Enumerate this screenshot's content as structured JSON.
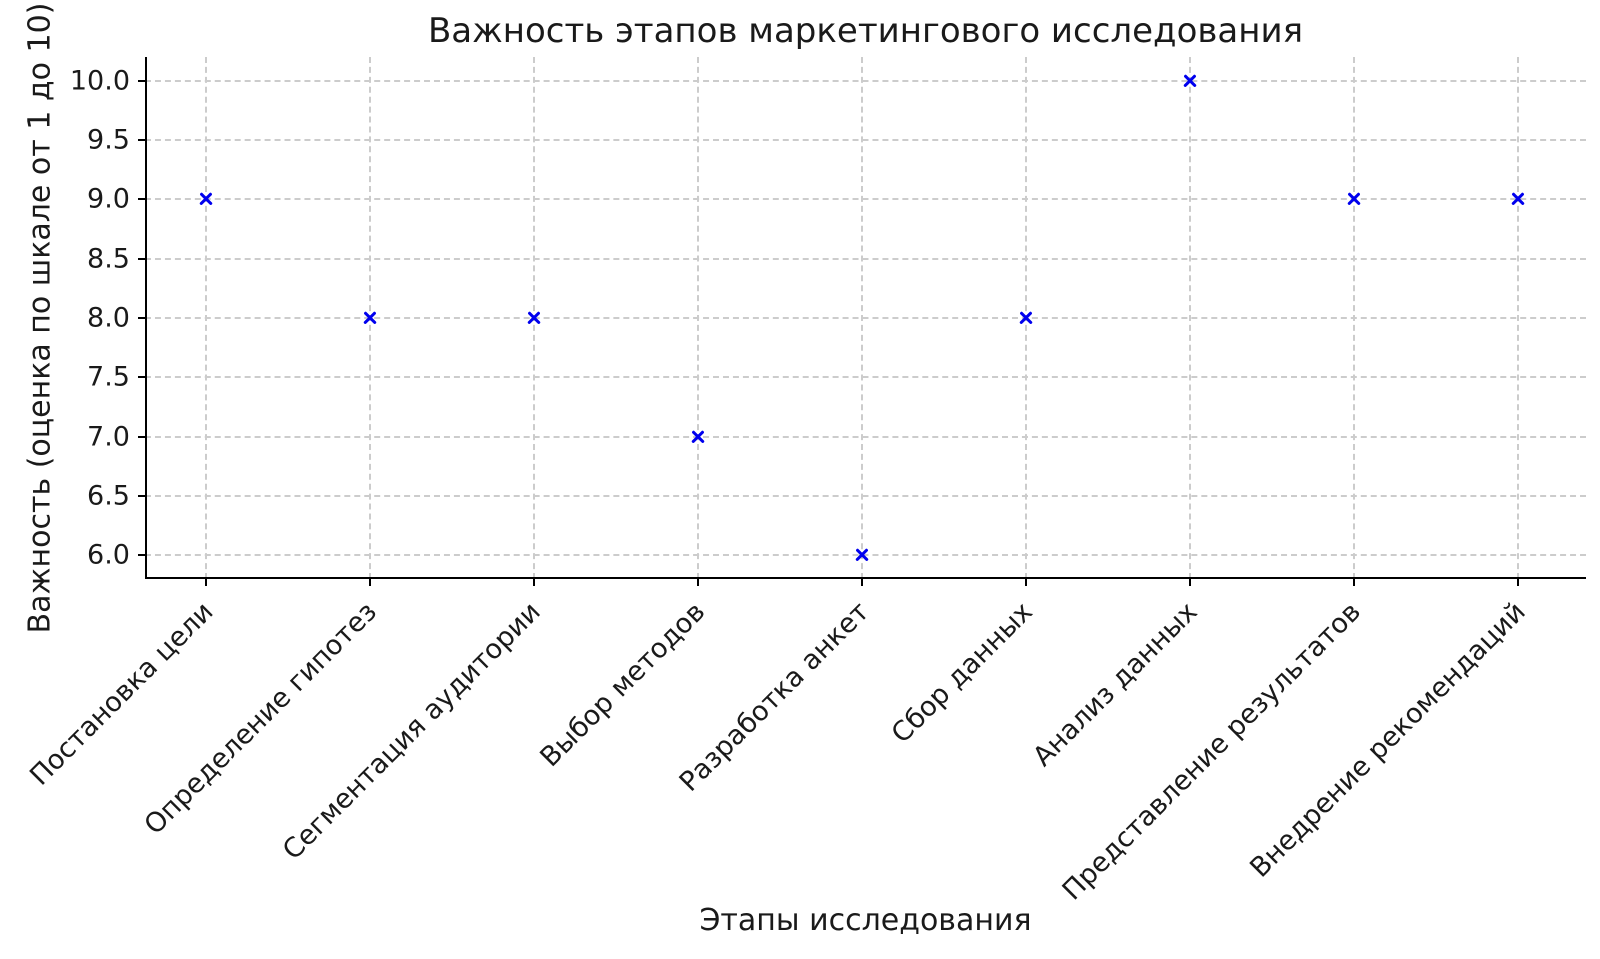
{
  "chart_data": {
    "type": "scatter",
    "title": "Важность этапов маркетингового исследования",
    "xlabel": "Этапы исследования",
    "ylabel": "Важность (оценка по шкале от 1 до 10)",
    "categories": [
      "Постановка цели",
      "Определение гипотез",
      "Сегментация аудитории",
      "Выбор методов",
      "Разработка анкет",
      "Сбор данных",
      "Анализ данных",
      "Представление результатов",
      "Внедрение рекомендаций"
    ],
    "values": [
      9,
      8,
      8,
      7,
      6,
      8,
      10,
      9,
      9
    ],
    "yticks": [
      6.0,
      6.5,
      7.0,
      7.5,
      8.0,
      8.5,
      9.0,
      9.5,
      10.0
    ],
    "ytick_labels": [
      "6.0",
      "6.5",
      "7.0",
      "7.5",
      "8.0",
      "8.5",
      "9.0",
      "9.5",
      "10.0"
    ],
    "ylim": [
      5.8,
      10.2
    ],
    "marker": "x",
    "grid": true,
    "grid_linestyle": "dashed",
    "legend": "none",
    "colors": {
      "marker": "#0000ee",
      "grid": "#cccccc",
      "spine": "#000000",
      "text": "#1a1a1a"
    }
  }
}
